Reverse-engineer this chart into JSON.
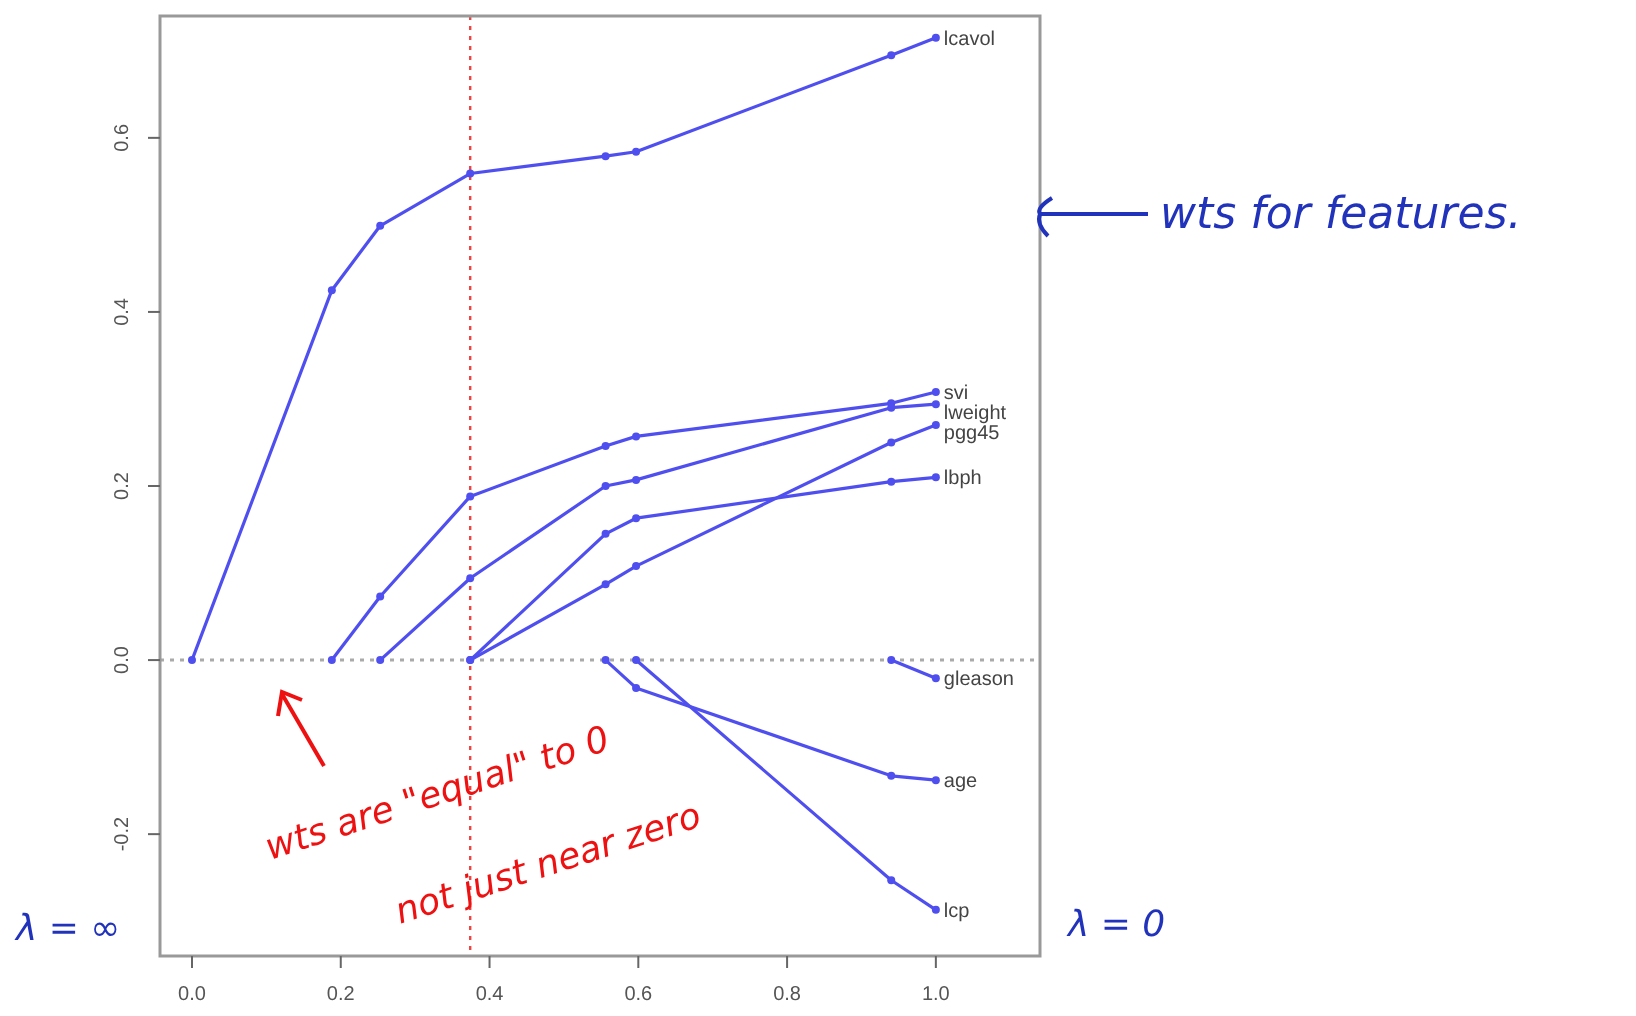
{
  "chart_data": {
    "type": "line",
    "x": [
      0,
      0.188,
      0.253,
      0.374,
      0.556,
      0.597,
      0.94,
      1.0
    ],
    "series": [
      {
        "name": "lcavol",
        "color": "#4f4ff0",
        "values": [
          0,
          0.425,
          0.499,
          0.559,
          0.579,
          0.584,
          0.695,
          0.715
        ]
      },
      {
        "name": "svi",
        "color": "#4f4ff0",
        "values": [
          null,
          0,
          0.073,
          0.188,
          0.246,
          0.257,
          0.295,
          0.308
        ]
      },
      {
        "name": "lweight",
        "color": "#4f4ff0",
        "values": [
          null,
          null,
          0,
          0.094,
          0.2,
          0.207,
          0.29,
          0.294
        ]
      },
      {
        "name": "pgg45",
        "color": "#4f4ff0",
        "values": [
          null,
          null,
          null,
          0,
          0.087,
          0.108,
          0.25,
          0.27
        ]
      },
      {
        "name": "lbph",
        "color": "#4f4ff0",
        "values": [
          null,
          null,
          null,
          0,
          0.145,
          0.163,
          0.205,
          0.21
        ]
      },
      {
        "name": "gleason",
        "color": "#4f4ff0",
        "values": [
          null,
          null,
          null,
          null,
          null,
          null,
          0,
          -0.021
        ]
      },
      {
        "name": "age",
        "color": "#4f4ff0",
        "values": [
          null,
          null,
          null,
          null,
          0,
          -0.032,
          -0.133,
          -0.138
        ]
      },
      {
        "name": "lcp",
        "color": "#4f4ff0",
        "values": [
          null,
          null,
          null,
          null,
          null,
          0,
          -0.253,
          -0.287
        ]
      }
    ],
    "xlim": [
      -0.043,
      1.14
    ],
    "ylim": [
      -0.34,
      0.74
    ],
    "xticks": [
      {
        "value": 0,
        "label": "0.0"
      },
      0.2,
      0.4,
      0.6,
      0.8,
      {
        "value": 1,
        "label": "1.0"
      }
    ],
    "yticks": [
      -0.2,
      {
        "value": 0,
        "label": "0.0"
      },
      0.2,
      0.4,
      0.6
    ],
    "ref_lines": [
      {
        "axis": "y",
        "value": 0,
        "color": "#aaaaaa",
        "line_style": "dotted"
      },
      {
        "axis": "x",
        "value": 0.374,
        "color": "#ee4444",
        "line_style": "dotted"
      }
    ],
    "marker": "circle",
    "line_style": "solid",
    "grid": false,
    "annotations": [
      "wts for features.",
      "wts are \"equal\" to 0",
      "not just near zero",
      "λ = ∞",
      "λ = 0"
    ]
  }
}
